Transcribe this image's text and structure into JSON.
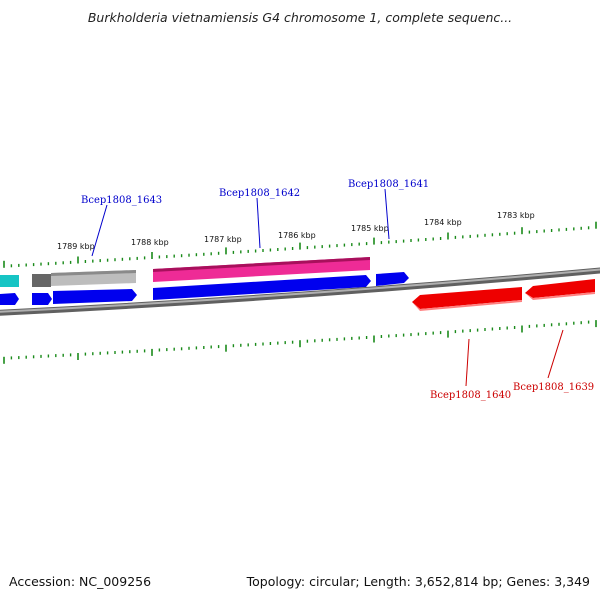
{
  "title": "Burkholderia vietnamiensis G4 chromosome 1, complete sequenc...",
  "footer": {
    "accession": "Accession: NC_009256",
    "stats": "Topology: circular; Length: 3,652,814 bp; Genes: 3,349"
  },
  "scale_labels": [
    "1789 kbp",
    "1788 kbp",
    "1787 kbp",
    "1786 kbp",
    "1785 kbp",
    "1784 kbp",
    "1783 kbp"
  ],
  "genes": {
    "forward": [
      {
        "label": "Bcep1808_1643",
        "color": "#0000cc"
      },
      {
        "label": "Bcep1808_1642",
        "color": "#0000cc"
      },
      {
        "label": "Bcep1808_1641",
        "color": "#0000cc"
      }
    ],
    "reverse": [
      {
        "label": "Bcep1808_1640",
        "color": "#cc0000"
      },
      {
        "label": "Bcep1808_1639",
        "color": "#cc0000"
      }
    ]
  },
  "colors": {
    "backbone": "#808080",
    "tick": "#1a8a1a",
    "cds_forward": "#0000ee",
    "cds_reverse": "#ee0000",
    "feature_pink": "#e8188a",
    "feature_gray": "#b8b8b8",
    "feature_darkgray": "#666666",
    "feature_cyan": "#16c4c4"
  }
}
